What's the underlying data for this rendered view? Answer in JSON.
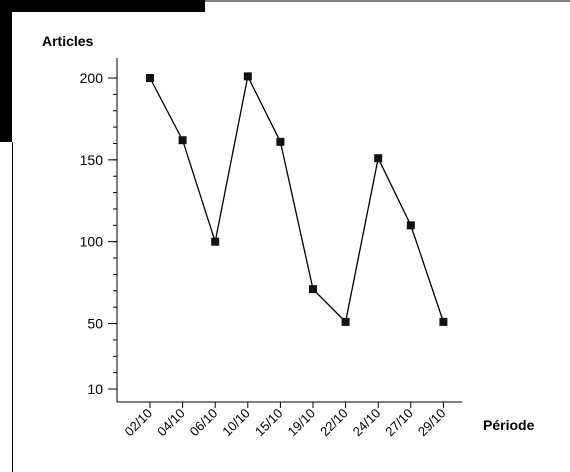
{
  "chart_data": {
    "type": "line",
    "ylabel": "Articles",
    "xlabel": "Période",
    "categories": [
      "02/10",
      "04/10",
      "06/10",
      "10/10",
      "15/10",
      "19/10",
      "22/10",
      "24/10",
      "27/10",
      "29/10"
    ],
    "series": [
      {
        "values": [
          200,
          162,
          100,
          201,
          161,
          71,
          51,
          151,
          110,
          51
        ]
      }
    ],
    "yticks": [
      10,
      50,
      100,
      150,
      200
    ],
    "ylim": [
      0,
      215
    ],
    "grid": false,
    "marker": "square",
    "line_color": "#000000",
    "marker_color": "#111111"
  }
}
